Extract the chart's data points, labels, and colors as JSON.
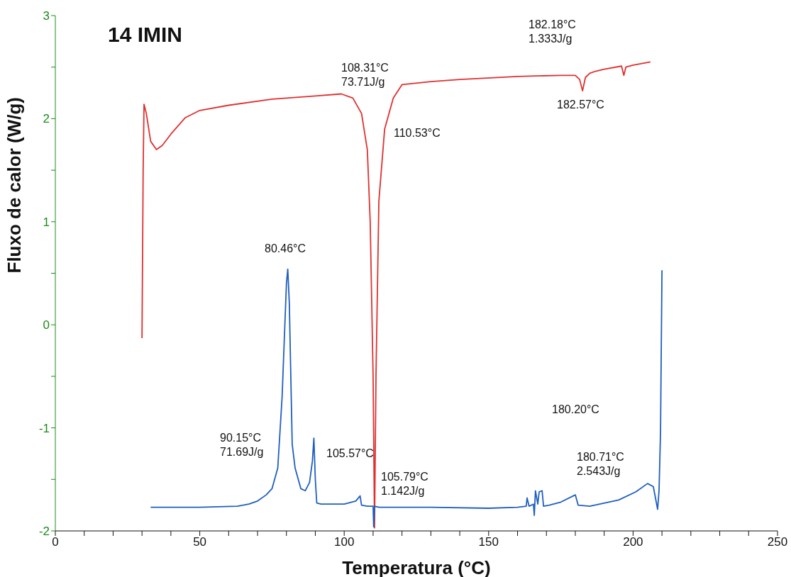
{
  "chart_data": {
    "type": "line",
    "xlabel": "Temperatura (°C)",
    "ylabel": "Fluxo de calor (W/g)",
    "xlim": [
      0,
      250
    ],
    "xticks": [
      0,
      {
        "value": 10,
        "label": null
      },
      {
        "value": 20,
        "label": null
      },
      {
        "value": 30,
        "label": null
      },
      {
        "value": 40,
        "label": null
      },
      50,
      {
        "value": 60,
        "label": null
      },
      {
        "value": 70,
        "label": null
      },
      {
        "value": 80,
        "label": null
      },
      {
        "value": 90,
        "label": null
      },
      100,
      {
        "value": 110,
        "label": null
      },
      {
        "value": 120,
        "label": null
      },
      {
        "value": 130,
        "label": null
      },
      {
        "value": 140,
        "label": null
      },
      150,
      {
        "value": 160,
        "label": null
      },
      {
        "value": 170,
        "label": null
      },
      {
        "value": 180,
        "label": null
      },
      {
        "value": 190,
        "label": null
      },
      200,
      {
        "value": 210,
        "label": null
      },
      {
        "value": 220,
        "label": null
      },
      {
        "value": 230,
        "label": null
      },
      {
        "value": 240,
        "label": null
      },
      250
    ],
    "ylim": [
      -2,
      3
    ],
    "yticks": [
      -2,
      {
        "value": -1.5,
        "label": null
      },
      -1,
      {
        "value": -0.5,
        "label": null
      },
      0,
      {
        "value": 0.5,
        "label": null
      },
      1,
      {
        "value": 1.5,
        "label": null
      },
      2,
      {
        "value": 2.5,
        "label": null
      },
      3
    ],
    "series": [
      {
        "color": "#e03030",
        "x": [
          30,
          30.4,
          30.7,
          31.5,
          33,
          35,
          37,
          40,
          45,
          50,
          60,
          75,
          90,
          99,
          103,
          106,
          108,
          109,
          110,
          110.5,
          111,
          112,
          114,
          117,
          120,
          130,
          140,
          160,
          175,
          180,
          181.5,
          182.5,
          183.5,
          185,
          187,
          190,
          196,
          196.8,
          197.5,
          200,
          206
        ],
        "values": [
          -0.13,
          1.5,
          2.14,
          2.05,
          1.78,
          1.7,
          1.74,
          1.85,
          2.01,
          2.08,
          2.13,
          2.19,
          2.22,
          2.24,
          2.2,
          2.05,
          1.7,
          1.0,
          -0.5,
          -1.97,
          -0.5,
          1.2,
          1.9,
          2.2,
          2.33,
          2.36,
          2.38,
          2.41,
          2.42,
          2.42,
          2.38,
          2.27,
          2.4,
          2.44,
          2.46,
          2.48,
          2.51,
          2.42,
          2.5,
          2.52,
          2.55
        ]
      },
      {
        "color": "#1f5fbf",
        "x": [
          33,
          50,
          63,
          67,
          70,
          73,
          75,
          77,
          78.5,
          80,
          80.46,
          81,
          82,
          83,
          85,
          86.5,
          88,
          89,
          89.5,
          90,
          90.5,
          92,
          100,
          104,
          105.5,
          106,
          108,
          110,
          110.2,
          110.5,
          112,
          130,
          150,
          160,
          163,
          163.3,
          164,
          165.5,
          165.8,
          166.2,
          167,
          167.5,
          168.5,
          169,
          171,
          175,
          180,
          181,
          185,
          195,
          201,
          205,
          207,
          208.5,
          209,
          209.5,
          210
        ],
        "values": [
          -1.77,
          -1.77,
          -1.76,
          -1.74,
          -1.71,
          -1.65,
          -1.59,
          -1.39,
          -0.7,
          0.4,
          0.54,
          0.21,
          -1.16,
          -1.39,
          -1.59,
          -1.61,
          -1.53,
          -1.32,
          -1.1,
          -1.5,
          -1.73,
          -1.74,
          -1.74,
          -1.71,
          -1.66,
          -1.75,
          -1.76,
          -1.76,
          -1.96,
          -1.76,
          -1.77,
          -1.77,
          -1.78,
          -1.77,
          -1.76,
          -1.68,
          -1.76,
          -1.74,
          -1.85,
          -1.61,
          -1.74,
          -1.62,
          -1.61,
          -1.76,
          -1.75,
          -1.72,
          -1.65,
          -1.75,
          -1.76,
          -1.7,
          -1.62,
          -1.54,
          -1.57,
          -1.79,
          -1.6,
          -1.04,
          0.53
        ]
      }
    ],
    "annotations": [
      "14 IMIN",
      "108.31°C\n73.71J/g",
      "110.53°C",
      "182.18°C\n1.333J/g",
      "182.57°C",
      "80.46°C",
      "90.15°C\n71.69J/g",
      "105.57°C",
      "105.79°C\n1.142J/g",
      "180.20°C",
      "180.71°C\n2.543J/g"
    ]
  }
}
